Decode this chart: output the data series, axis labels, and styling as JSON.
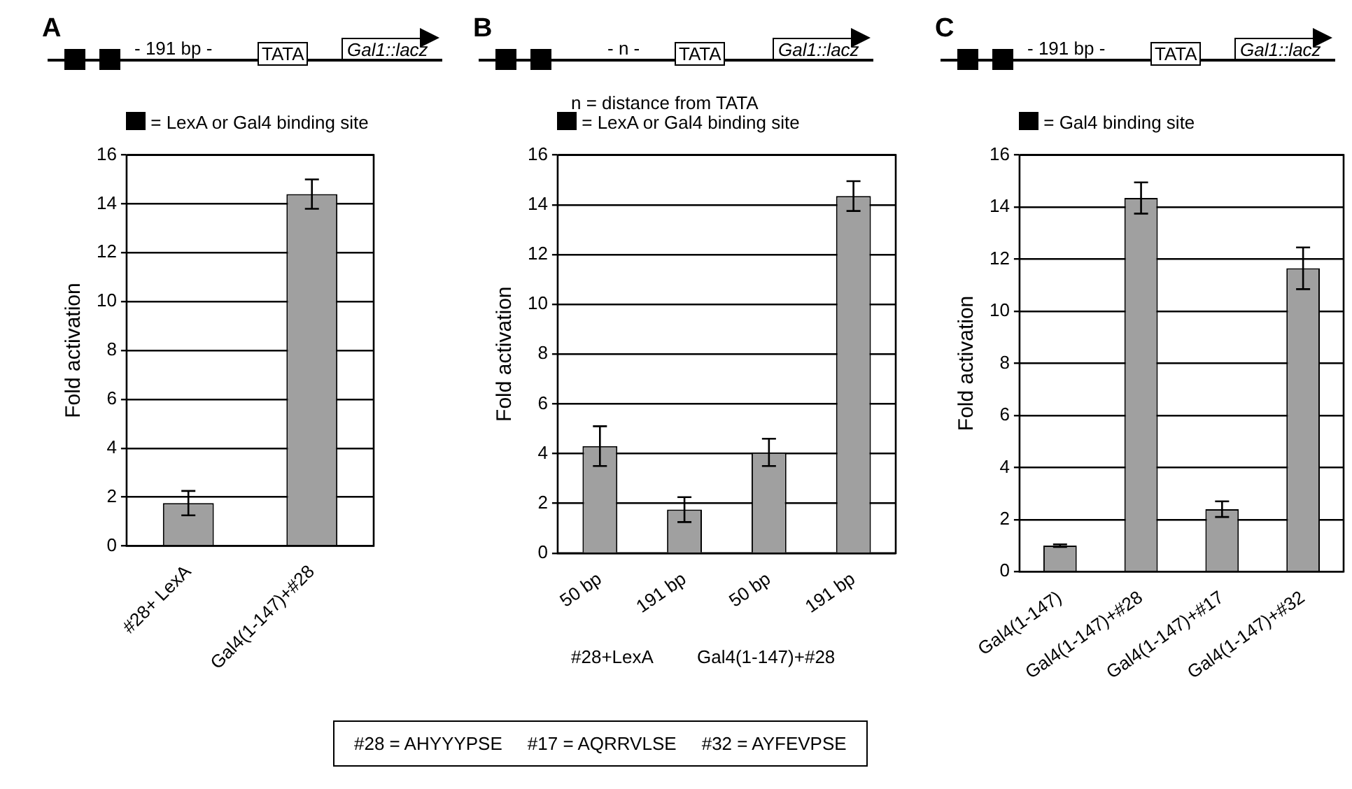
{
  "chart_data": [
    {
      "type": "bar",
      "title": "A",
      "ylabel": "Fold activation",
      "categories": [
        "#28+ LexA",
        "Gal4(1-147)+#28"
      ],
      "values": [
        1.75,
        14.4
      ],
      "errors": [
        0.5,
        0.6
      ],
      "color": "#a0a0a0",
      "ylim": [
        0,
        16
      ],
      "yticks": [
        0,
        2,
        4,
        6,
        8,
        10,
        12,
        14,
        16
      ],
      "grid": "y",
      "legend": false,
      "annotations": [
        "- 191 bp -",
        "TATA",
        "Gal1::lacz",
        "= LexA or Gal4 binding site"
      ]
    },
    {
      "type": "bar",
      "title": "B",
      "ylabel": "Fold activation",
      "categories": [
        "50 bp",
        "191 bp",
        "50 bp",
        "191 bp"
      ],
      "values": [
        4.3,
        1.75,
        4.05,
        14.35
      ],
      "errors": [
        0.8,
        0.5,
        0.55,
        0.6
      ],
      "color": "#a0a0a0",
      "ylim": [
        0,
        16
      ],
      "yticks": [
        0,
        2,
        4,
        6,
        8,
        10,
        12,
        14,
        16
      ],
      "grid": "y",
      "legend": false,
      "annotations": [
        "- n -",
        "TATA",
        "Gal1::lacz",
        "n = distance from TATA",
        "= LexA or Gal4 binding site",
        "#28+LexA",
        "Gal4(1-147)+#28"
      ]
    },
    {
      "type": "bar",
      "title": "C",
      "ylabel": "Fold activation",
      "categories": [
        "Gal4(1-147)",
        "Gal4(1-147)+#28",
        "Gal4(1-147)+#17",
        "Gal4(1-147)+#32"
      ],
      "values": [
        1.0,
        14.35,
        2.4,
        11.65
      ],
      "errors": [
        0.05,
        0.6,
        0.3,
        0.8
      ],
      "color": "#a0a0a0",
      "ylim": [
        0,
        16
      ],
      "yticks": [
        0,
        2,
        4,
        6,
        8,
        10,
        12,
        14,
        16
      ],
      "grid": "y",
      "legend": false,
      "annotations": [
        "- 191 bp -",
        "TATA",
        "Gal1::lacz",
        "= Gal4 binding site",
        "#28 = AHYYYPSE     #17 = AQRRVLSE     #32 = AYFEVPSE"
      ]
    }
  ]
}
